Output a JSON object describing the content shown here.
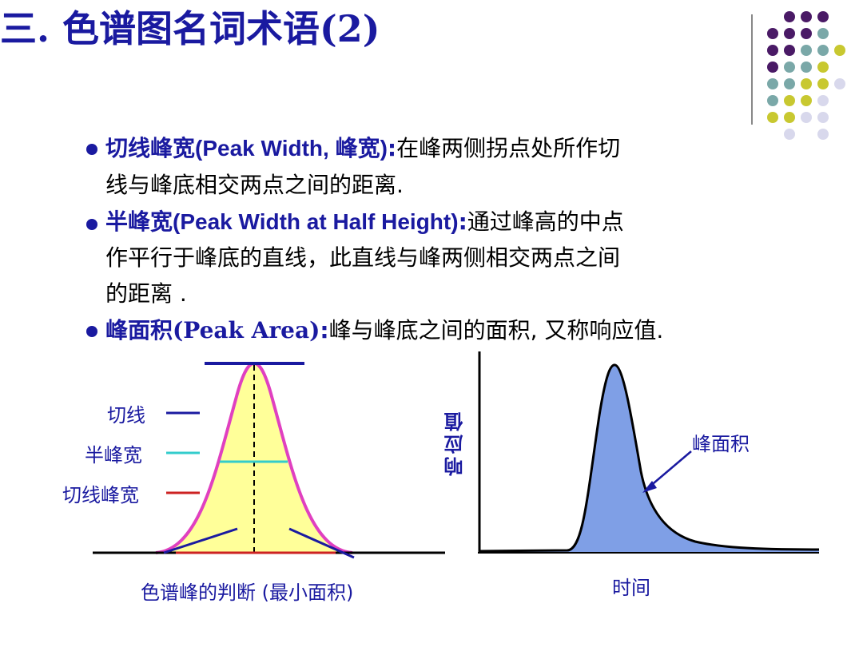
{
  "title": "三. 色谱图名词术语(2)",
  "bullets": [
    {
      "term": "切线峰宽",
      "paren": "(Peak Width, 峰宽)",
      "colon": ":",
      "desc_line1": "在峰两侧拐点处所作切",
      "desc_line2": "线与峰底相交两点之间的距离."
    },
    {
      "term": "半峰宽",
      "paren": "(Peak Width at Half Height)",
      "colon": ":",
      "desc_line1": "通过峰高的中点",
      "desc_line2": "作平行于峰底的直线，此直线与峰两侧相交两点之间",
      "desc_line3": "的距离 ."
    },
    {
      "term": "峰面积",
      "paren": "(Peak Area)",
      "colon": ":",
      "desc_line1": "峰与峰底之间的面积, 又称响应值."
    }
  ],
  "left_diagram": {
    "legend": [
      {
        "label": "切线",
        "color": "#1a1aa0"
      },
      {
        "label": "半峰宽",
        "color": "#33cccc"
      },
      {
        "label": "切线峰宽",
        "color": "#cc2222"
      }
    ],
    "caption": "色谱峰的判断 (最小面积)",
    "fill_color": "#ffff99",
    "curve_color": "#e040c0"
  },
  "right_diagram": {
    "y_label": "响应值",
    "x_label": "时间",
    "area_label": "峰面积",
    "fill_color": "#7f9fe6"
  },
  "colors": {
    "title": "#1a1aa0",
    "dots": [
      "#4a1a66",
      "#7aa8a8",
      "#c8c830",
      "#d8d8ec"
    ]
  }
}
